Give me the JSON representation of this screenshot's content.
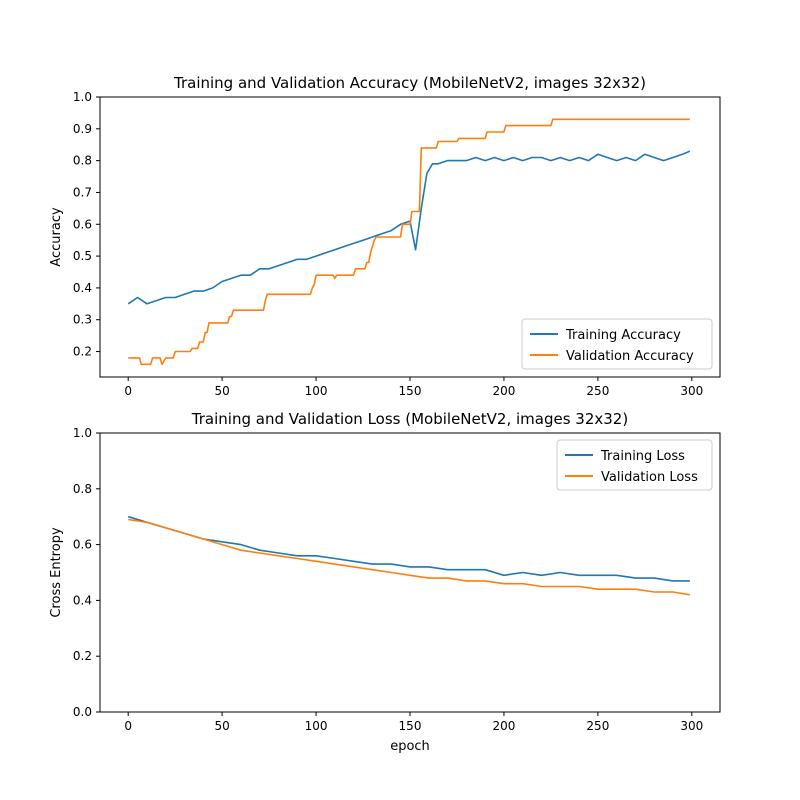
{
  "chart_data": [
    {
      "type": "line",
      "title": "Training and Validation Accuracy (MobileNetV2, images 32x32)",
      "xlabel": "",
      "ylabel": "Accuracy",
      "xlim": [
        -15,
        315
      ],
      "ylim": [
        0.12,
        1.0
      ],
      "xticks": [
        "0",
        "50",
        "100",
        "150",
        "200",
        "250",
        "300"
      ],
      "yticks": [
        "0.2",
        "0.3",
        "0.4",
        "0.5",
        "0.6",
        "0.7",
        "0.8",
        "0.9",
        "1.0"
      ],
      "legend_position": "lower-right",
      "grid": false,
      "series": [
        {
          "name": "Training Accuracy",
          "color": "#1f77b4",
          "x": [
            0,
            5,
            10,
            15,
            20,
            25,
            30,
            35,
            40,
            45,
            50,
            55,
            60,
            65,
            70,
            75,
            80,
            85,
            90,
            95,
            100,
            105,
            110,
            115,
            120,
            125,
            130,
            135,
            140,
            145,
            150,
            153,
            156,
            159,
            162,
            165,
            170,
            175,
            180,
            185,
            190,
            195,
            200,
            205,
            210,
            215,
            220,
            225,
            230,
            235,
            240,
            245,
            250,
            255,
            260,
            265,
            270,
            275,
            280,
            285,
            290,
            295,
            299
          ],
          "y": [
            0.35,
            0.37,
            0.35,
            0.36,
            0.37,
            0.37,
            0.38,
            0.39,
            0.39,
            0.4,
            0.42,
            0.43,
            0.44,
            0.44,
            0.46,
            0.46,
            0.47,
            0.48,
            0.49,
            0.49,
            0.5,
            0.51,
            0.52,
            0.53,
            0.54,
            0.55,
            0.56,
            0.57,
            0.58,
            0.6,
            0.61,
            0.52,
            0.65,
            0.76,
            0.79,
            0.79,
            0.8,
            0.8,
            0.8,
            0.81,
            0.8,
            0.81,
            0.8,
            0.81,
            0.8,
            0.81,
            0.81,
            0.8,
            0.81,
            0.8,
            0.81,
            0.8,
            0.82,
            0.81,
            0.8,
            0.81,
            0.8,
            0.82,
            0.81,
            0.8,
            0.81,
            0.82,
            0.83
          ]
        },
        {
          "name": "Validation Accuracy",
          "color": "#ff7f0e",
          "x": [
            0,
            6,
            7,
            12,
            13,
            17,
            18,
            20,
            24,
            25,
            33,
            34,
            37,
            38,
            40,
            41,
            42,
            43,
            53,
            54,
            55,
            56,
            72,
            73,
            74,
            97,
            98,
            99,
            100,
            101,
            109,
            110,
            111,
            120,
            121,
            126,
            127,
            128,
            129,
            130,
            131,
            132,
            133,
            145,
            146,
            150,
            151,
            155,
            156,
            164,
            165,
            175,
            176,
            190,
            191,
            200,
            201,
            220,
            221,
            225,
            226,
            299
          ],
          "y": [
            0.18,
            0.18,
            0.16,
            0.16,
            0.18,
            0.18,
            0.16,
            0.18,
            0.18,
            0.2,
            0.2,
            0.21,
            0.21,
            0.23,
            0.23,
            0.26,
            0.26,
            0.29,
            0.29,
            0.31,
            0.31,
            0.33,
            0.33,
            0.36,
            0.38,
            0.38,
            0.4,
            0.41,
            0.44,
            0.44,
            0.44,
            0.43,
            0.44,
            0.44,
            0.46,
            0.46,
            0.48,
            0.48,
            0.51,
            0.53,
            0.55,
            0.56,
            0.56,
            0.56,
            0.6,
            0.6,
            0.64,
            0.64,
            0.84,
            0.84,
            0.86,
            0.86,
            0.87,
            0.87,
            0.89,
            0.89,
            0.91,
            0.91,
            0.91,
            0.91,
            0.93,
            0.93
          ]
        }
      ]
    },
    {
      "type": "line",
      "title": "Training and Validation Loss (MobileNetV2, images 32x32)",
      "xlabel": "epoch",
      "ylabel": "Cross Entropy",
      "xlim": [
        -15,
        315
      ],
      "ylim": [
        0.0,
        1.0
      ],
      "xticks": [
        "0",
        "50",
        "100",
        "150",
        "200",
        "250",
        "300"
      ],
      "yticks": [
        "0.0",
        "0.2",
        "0.4",
        "0.6",
        "0.8",
        "1.0"
      ],
      "legend_position": "upper-right",
      "grid": false,
      "series": [
        {
          "name": "Training Loss",
          "color": "#1f77b4",
          "x": [
            0,
            10,
            20,
            30,
            40,
            50,
            60,
            70,
            80,
            90,
            100,
            110,
            120,
            130,
            140,
            150,
            160,
            170,
            180,
            190,
            200,
            210,
            220,
            230,
            240,
            250,
            260,
            270,
            280,
            290,
            299
          ],
          "y": [
            0.7,
            0.68,
            0.66,
            0.64,
            0.62,
            0.61,
            0.6,
            0.58,
            0.57,
            0.56,
            0.56,
            0.55,
            0.54,
            0.53,
            0.53,
            0.52,
            0.52,
            0.51,
            0.51,
            0.51,
            0.49,
            0.5,
            0.49,
            0.5,
            0.49,
            0.49,
            0.49,
            0.48,
            0.48,
            0.47,
            0.47
          ]
        },
        {
          "name": "Validation Loss",
          "color": "#ff7f0e",
          "x": [
            0,
            10,
            20,
            30,
            40,
            50,
            60,
            70,
            80,
            90,
            100,
            110,
            120,
            130,
            140,
            150,
            160,
            170,
            180,
            190,
            200,
            210,
            220,
            230,
            240,
            250,
            260,
            270,
            280,
            290,
            299
          ],
          "y": [
            0.69,
            0.68,
            0.66,
            0.64,
            0.62,
            0.6,
            0.58,
            0.57,
            0.56,
            0.55,
            0.54,
            0.53,
            0.52,
            0.51,
            0.5,
            0.49,
            0.48,
            0.48,
            0.47,
            0.47,
            0.46,
            0.46,
            0.45,
            0.45,
            0.45,
            0.44,
            0.44,
            0.44,
            0.43,
            0.43,
            0.42
          ]
        }
      ]
    }
  ]
}
